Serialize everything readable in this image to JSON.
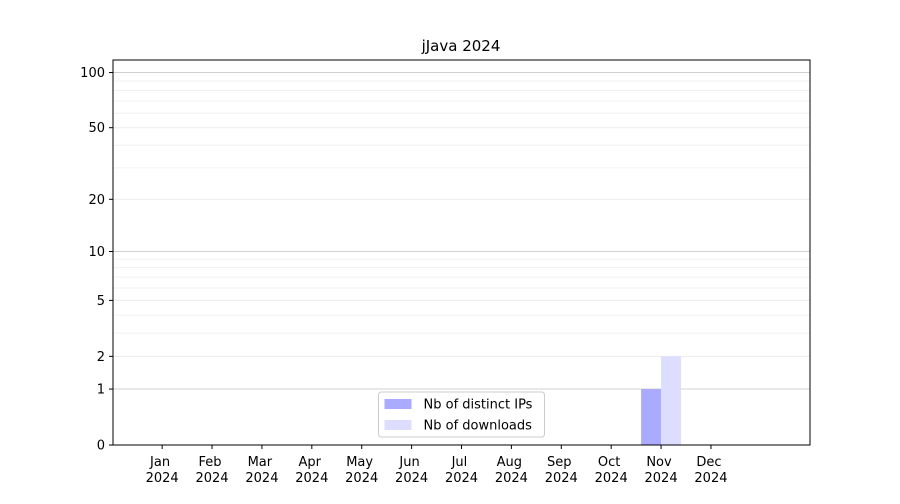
{
  "chart_data": {
    "type": "bar",
    "title": "jJava 2024",
    "categories": [
      "Jan 2024",
      "Feb 2024",
      "Mar 2024",
      "Apr 2024",
      "May 2024",
      "Jun 2024",
      "Jul 2024",
      "Aug 2024",
      "Sep 2024",
      "Oct 2024",
      "Nov 2024",
      "Dec 2024"
    ],
    "series": [
      {
        "name": "Nb of distinct IPs",
        "color": "#aaaaff",
        "values": [
          0,
          0,
          0,
          0,
          0,
          0,
          0,
          0,
          0,
          0,
          1,
          0
        ]
      },
      {
        "name": "Nb of downloads",
        "color": "#ddddff",
        "values": [
          0,
          0,
          0,
          0,
          0,
          0,
          0,
          0,
          0,
          0,
          2,
          0
        ]
      }
    ],
    "yscale": "log1p",
    "ylim": [
      0,
      117
    ],
    "yticks": [
      0,
      1,
      2,
      5,
      10,
      20,
      50,
      100
    ],
    "minor_yticks": [
      3,
      4,
      6,
      7,
      8,
      9,
      30,
      40,
      60,
      70,
      80,
      90
    ],
    "grid": true,
    "legend": "lower center"
  }
}
